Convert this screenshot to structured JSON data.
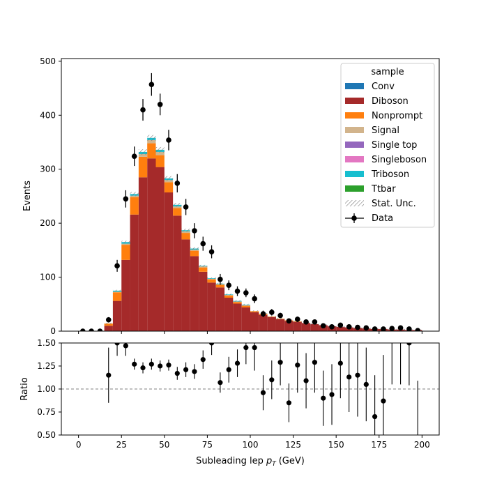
{
  "chart_data": {
    "type": "bar",
    "subtype": "stacked-histogram-with-ratio",
    "x_label": "Subleading lep",
    "x_label_symbol": "p",
    "x_label_subscript": "T",
    "x_label_unit": "(GeV)",
    "top_ylabel": "Events",
    "bottom_ylabel": "Ratio",
    "xlim": [
      -10,
      210
    ],
    "top_ylim": [
      0,
      505
    ],
    "bottom_ylim": [
      0.5,
      1.5
    ],
    "ratio_reference": 1.0,
    "bin_edges": [
      0,
      5,
      10,
      15,
      20,
      25,
      30,
      35,
      40,
      45,
      50,
      55,
      60,
      65,
      70,
      75,
      80,
      85,
      90,
      95,
      100,
      105,
      110,
      115,
      120,
      125,
      130,
      135,
      140,
      145,
      150,
      155,
      160,
      165,
      170,
      175,
      180,
      185,
      190,
      195,
      200
    ],
    "x_ticks": [
      0,
      25,
      50,
      75,
      100,
      125,
      150,
      175,
      200
    ],
    "top_yticks": [
      0,
      100,
      200,
      300,
      400,
      500
    ],
    "bottom_yticks": [
      0.5,
      0.75,
      1.0,
      1.25,
      1.5
    ],
    "bottom_ytick_labels": [
      "0.50",
      "0.75",
      "1.00",
      "1.25",
      "1.50"
    ],
    "legend_title": "sample",
    "legend_position": "top-right",
    "series": [
      {
        "name": "Conv",
        "color": "#1f77b4",
        "values": [
          0,
          0,
          0,
          0,
          0,
          0,
          0,
          0,
          0,
          0,
          0,
          0,
          0,
          0,
          0,
          0,
          0,
          0,
          0,
          0,
          0,
          0,
          0,
          0,
          0,
          0,
          0,
          0,
          0,
          0,
          0,
          0,
          0,
          0,
          0,
          0,
          0,
          0,
          0,
          0
        ]
      },
      {
        "name": "Diboson",
        "color": "#a52a2a",
        "values": [
          0,
          0,
          0,
          10,
          56,
          132,
          216,
          285,
          320,
          304,
          257,
          214,
          170,
          139,
          110,
          90,
          81,
          62,
          51,
          44,
          35,
          30,
          26,
          22,
          19,
          17,
          15,
          13,
          11,
          9,
          8,
          7,
          6,
          5,
          4,
          4,
          3,
          3,
          2,
          2
        ]
      },
      {
        "name": "Nonprompt",
        "color": "#ff7f0e",
        "values": [
          0,
          0,
          0,
          4,
          16,
          28,
          32,
          38,
          28,
          22,
          19,
          14,
          12,
          10,
          8,
          6,
          5,
          4,
          3,
          3,
          2,
          2,
          1,
          1,
          1,
          1,
          0,
          0,
          0,
          0,
          0,
          0,
          0,
          0,
          0,
          0,
          0,
          0,
          0,
          0
        ]
      },
      {
        "name": "Signal",
        "color": "#d2b48c",
        "values": [
          0,
          0,
          0,
          0,
          1,
          2,
          3,
          5,
          6,
          6,
          4,
          3,
          3,
          2,
          2,
          1,
          1,
          1,
          1,
          1,
          0,
          0,
          0,
          0,
          0,
          0,
          0,
          0,
          0,
          0,
          0,
          0,
          0,
          0,
          0,
          0,
          0,
          0,
          0,
          0
        ]
      },
      {
        "name": "Single top",
        "color": "#9467bd",
        "values": [
          0,
          0,
          0,
          0,
          0,
          0,
          0,
          0,
          0,
          0,
          0,
          0,
          0,
          0,
          0,
          0,
          0,
          0,
          0,
          0,
          0,
          0,
          0,
          0,
          0,
          0,
          0,
          0,
          0,
          0,
          0,
          0,
          0,
          0,
          0,
          0,
          0,
          0,
          0,
          0
        ]
      },
      {
        "name": "Singleboson",
        "color": "#e377c2",
        "values": [
          0,
          0,
          0,
          0,
          0,
          0,
          0,
          0,
          0,
          0,
          0,
          0,
          0,
          0,
          0,
          0,
          0,
          0,
          0,
          0,
          0,
          0,
          0,
          0,
          0,
          0,
          0,
          0,
          0,
          0,
          0,
          0,
          0,
          0,
          0,
          0,
          0,
          0,
          0,
          0
        ]
      },
      {
        "name": "Triboson",
        "color": "#17becf",
        "values": [
          0,
          0,
          0,
          0,
          2,
          3,
          3,
          4,
          4,
          4,
          3,
          3,
          2,
          2,
          1,
          1,
          1,
          1,
          1,
          1,
          0,
          0,
          0,
          0,
          0,
          0,
          0,
          0,
          0,
          0,
          0,
          0,
          0,
          0,
          0,
          0,
          0,
          0,
          0,
          0
        ]
      },
      {
        "name": "Ttbar",
        "color": "#2ca02c",
        "values": [
          0,
          0,
          0,
          0,
          0,
          0,
          0,
          0,
          0,
          0,
          0,
          0,
          0,
          0,
          0,
          0,
          0,
          0,
          0,
          0,
          0,
          0,
          0,
          0,
          0,
          0,
          0,
          0,
          0,
          0,
          0,
          0,
          0,
          0,
          0,
          0,
          0,
          0,
          0,
          0
        ]
      }
    ],
    "stat_unc": {
      "name": "Stat. Unc.",
      "fraction": 0.015
    },
    "data": {
      "name": "Data",
      "values": [
        0,
        0,
        0,
        21,
        121,
        245,
        324,
        410,
        457,
        420,
        354,
        274,
        230,
        186,
        162,
        147,
        96,
        85,
        74,
        71,
        60,
        32,
        35,
        29,
        19,
        22,
        17,
        17,
        10,
        8,
        11,
        8,
        7,
        6,
        4,
        4,
        5,
        6,
        4,
        1
      ],
      "errors": [
        0,
        0,
        0,
        5,
        11,
        16,
        18,
        20,
        21,
        20,
        19,
        17,
        15,
        14,
        13,
        12,
        10,
        9,
        9,
        8,
        8,
        6,
        6,
        5,
        4,
        5,
        4,
        4,
        3,
        3,
        3,
        3,
        3,
        2,
        2,
        2,
        2,
        2,
        2,
        1
      ]
    },
    "ratio": {
      "values": [
        null,
        null,
        null,
        1.15,
        1.5,
        1.47,
        1.27,
        1.23,
        1.27,
        1.25,
        1.26,
        1.17,
        1.21,
        1.19,
        1.32,
        1.5,
        1.07,
        1.21,
        1.28,
        1.45,
        1.45,
        0.96,
        1.1,
        1.29,
        0.85,
        1.26,
        1.09,
        1.29,
        0.9,
        0.94,
        1.28,
        1.13,
        1.15,
        1.05,
        0.7,
        0.87,
        null,
        null,
        1.5,
        null
      ],
      "errors": [
        0,
        0,
        0,
        0.3,
        0.14,
        0.11,
        0.06,
        0.06,
        0.06,
        0.06,
        0.06,
        0.07,
        0.08,
        0.08,
        0.1,
        0.13,
        0.11,
        0.14,
        0.15,
        0.18,
        0.25,
        0.19,
        0.21,
        0.25,
        0.21,
        0.3,
        0.3,
        0.33,
        0.3,
        0.33,
        0.38,
        0.38,
        0.45,
        0.4,
        0.45,
        0.5,
        0,
        0,
        0.46,
        0
      ]
    }
  }
}
